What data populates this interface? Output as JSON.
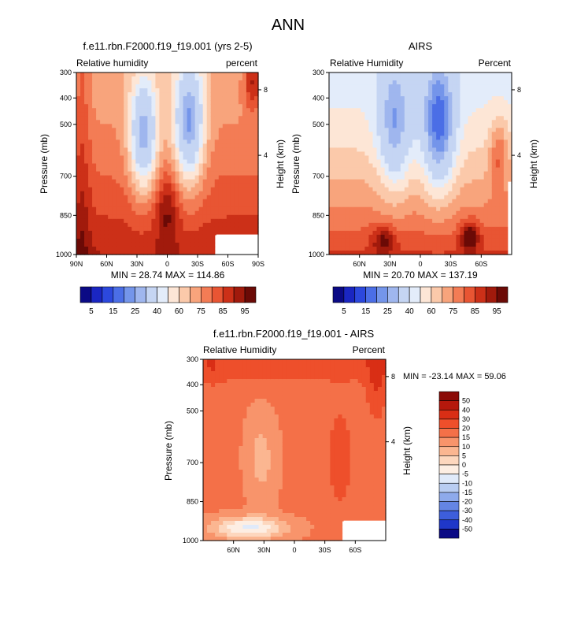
{
  "page_title": "ANN",
  "chart_data": [
    {
      "type": "heatmap",
      "title": "f.e11.rbn.F2000.f19_f19.001 (yrs 2-5)",
      "left_label": "Relative humidity",
      "right_label": "percent",
      "ylabel": "Pressure (mb)",
      "ylabel_right": "Height (km)",
      "x_ticks": [
        "90N",
        "60N",
        "30N",
        "0",
        "30S",
        "60S",
        "90S"
      ],
      "y_ticks": [
        "300",
        "400",
        "500",
        "700",
        "850",
        "1000"
      ],
      "y_ticks_right": [
        "8",
        "4"
      ],
      "min": 28.74,
      "max": 114.86,
      "stats_text": "MIN = 28.74  MAX = 114.86",
      "colorbar_labels": [
        "5",
        "15",
        "25",
        "40",
        "60",
        "75",
        "85",
        "95"
      ]
    },
    {
      "type": "heatmap",
      "title": "AIRS",
      "left_label": "Relative Humidity",
      "right_label": "Percent",
      "ylabel": "Pressure (mb)",
      "ylabel_right": "Height (km)",
      "x_ticks": [
        "60N",
        "30N",
        "0",
        "30S",
        "60S"
      ],
      "y_ticks": [
        "300",
        "400",
        "500",
        "700",
        "850",
        "1000"
      ],
      "y_ticks_right": [
        "8",
        "4"
      ],
      "min": 20.7,
      "max": 137.19,
      "stats_text": "MIN = 20.70  MAX = 137.19",
      "colorbar_labels": [
        "5",
        "15",
        "25",
        "40",
        "60",
        "75",
        "85",
        "95"
      ]
    },
    {
      "type": "heatmap",
      "title": "f.e11.rbn.F2000.f19_f19.001 - AIRS",
      "left_label": "Relative Humidity",
      "right_label": "Percent",
      "ylabel": "Pressure (mb)",
      "ylabel_right": "Height (km)",
      "x_ticks": [
        "60N",
        "30N",
        "0",
        "30S",
        "60S"
      ],
      "y_ticks": [
        "300",
        "400",
        "500",
        "700",
        "850",
        "1000"
      ],
      "y_ticks_right": [
        "8",
        "4"
      ],
      "min": -23.14,
      "max": 59.06,
      "stats_text": "MIN = -23.14  MAX = 59.06",
      "colorbar_labels": [
        "50",
        "40",
        "30",
        "20",
        "15",
        "10",
        "5",
        "0",
        "-5",
        "-10",
        "-15",
        "-20",
        "-30",
        "-40",
        "-50"
      ]
    }
  ],
  "colors": {
    "rh_scale": [
      "#0b0a85",
      "#1a26c2",
      "#2c48dd",
      "#4b6ee6",
      "#7495ea",
      "#9fb6ee",
      "#c5d5f3",
      "#e3ecfa",
      "#fde6d6",
      "#fbc9aa",
      "#f8a47c",
      "#f37c55",
      "#e85533",
      "#cc3018",
      "#a11a0c",
      "#6b0a06"
    ],
    "diff_scale": [
      "#8b0a06",
      "#b5180c",
      "#d92e15",
      "#ee4f2b",
      "#f47048",
      "#f8946b",
      "#fbb691",
      "#fdd7be",
      "#fdeee3",
      "#e0eafa",
      "#b9cdf2",
      "#8eaaeb",
      "#6485e4",
      "#3d5edb",
      "#1f37c9",
      "#0b0a85"
    ]
  }
}
